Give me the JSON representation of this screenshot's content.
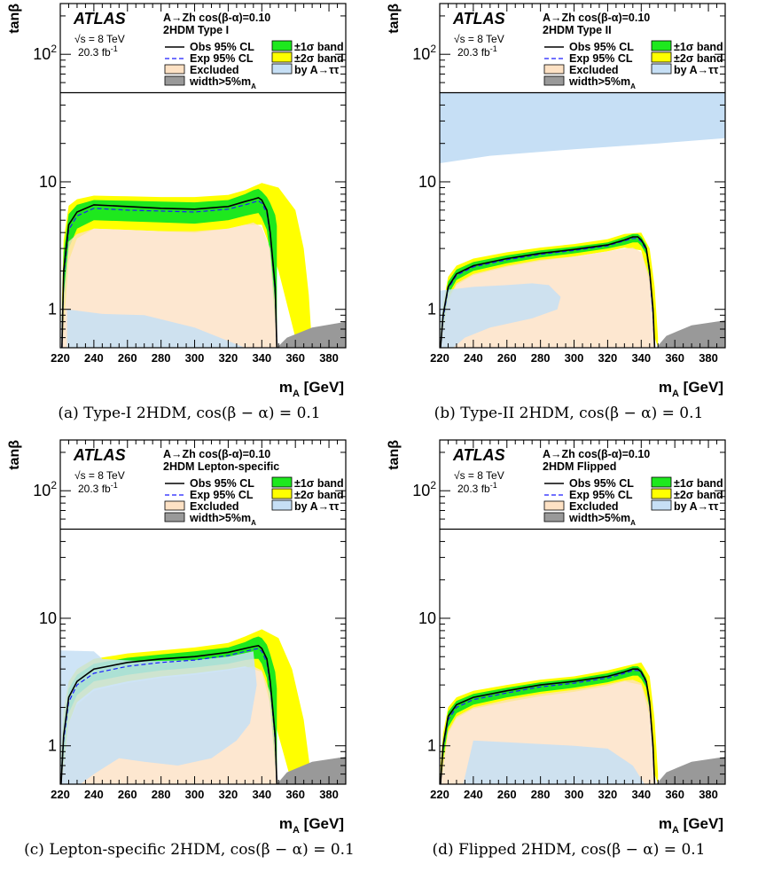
{
  "colors": {
    "excluded": "#fde1c4",
    "band1": "#1ee81e",
    "band2": "#ffff00",
    "atautau": "#c6dff5",
    "width": "#999999",
    "exp": "#1c1cff",
    "obs": "#000000"
  },
  "chart_data": [
    {
      "type": "area",
      "atlas_label": "ATLAS",
      "process_label": "A→Zh cos(β-α)=0.10",
      "model_label": "2HDM Type I",
      "energy_label": "√s = 8 TeV",
      "lumi_label": "20.3 fb",
      "lumi_sup": "-1",
      "xlabel": "m",
      "xlabel_sub": "A",
      "xlabel_unit": " [GeV]",
      "ylabel": "tanβ",
      "xlim": [
        220,
        390
      ],
      "ylim": [
        0.5,
        250
      ],
      "yscale": "log",
      "xticks": [
        220,
        240,
        260,
        280,
        300,
        320,
        340,
        360,
        380
      ],
      "yticks": [
        {
          "label": "1",
          "value": 1
        },
        {
          "label": "10",
          "value": 10
        },
        {
          "label": "10",
          "sup": "2",
          "value": 100
        }
      ],
      "legend": {
        "obs": "Obs 95% CL",
        "exp": "Exp 95% CL",
        "excluded": "Excluded",
        "width": "width>5%m",
        "width_sub": "A",
        "band1": "±1σ band",
        "band2": "±2σ band",
        "atautau": "by A→ττ"
      },
      "caption": "(a) Type-I 2HDM, cos(β − α) = 0.1",
      "upper_line": 50,
      "x": [
        221,
        222,
        225,
        230,
        240,
        260,
        280,
        300,
        320,
        330,
        335,
        338,
        340,
        343,
        345,
        348,
        349
      ],
      "obs": [
        0.5,
        2.0,
        4.6,
        5.8,
        6.6,
        6.4,
        6.2,
        6.1,
        6.4,
        7.0,
        7.3,
        7.5,
        7.2,
        6.0,
        4.0,
        1.5,
        0.5
      ],
      "exp": [
        0.5,
        1.8,
        4.2,
        5.4,
        6.2,
        6.0,
        5.9,
        5.8,
        6.1,
        6.6,
        6.9,
        7.1,
        6.8,
        5.7,
        3.8,
        1.4,
        0.5
      ],
      "band1_upper": [
        0.9,
        2.8,
        5.6,
        6.6,
        7.2,
        7.1,
        7.0,
        6.9,
        7.2,
        8.0,
        8.6,
        8.8,
        8.4,
        7.6,
        6.8,
        5.5,
        4.5
      ],
      "band1_lower": [
        0.5,
        1.0,
        3.0,
        4.3,
        5.0,
        4.9,
        4.8,
        4.7,
        5.0,
        5.4,
        5.6,
        5.7,
        5.2,
        4.2,
        2.6,
        0.8,
        0.5
      ],
      "band2_x": [
        221,
        222,
        225,
        230,
        240,
        260,
        280,
        300,
        320,
        330,
        340,
        350,
        360,
        365,
        368,
        370
      ],
      "band2_upper": [
        1.2,
        3.5,
        6.5,
        7.3,
        7.8,
        7.7,
        7.6,
        7.6,
        7.9,
        8.6,
        9.8,
        9.0,
        6.0,
        3.0,
        1.3,
        0.5
      ],
      "band2_lower": [
        0.5,
        0.7,
        2.4,
        3.6,
        4.3,
        4.2,
        4.1,
        4.0,
        4.3,
        4.6,
        4.6,
        2.0,
        0.6,
        0.5,
        0.5,
        0.5
      ],
      "excluded_x": [
        221,
        222,
        225,
        230,
        240,
        260,
        280,
        300,
        320,
        330,
        335,
        340,
        345,
        348,
        349
      ],
      "excluded_upper": [
        0.5,
        1.3,
        3.4,
        3.9,
        4.3,
        4.2,
        4.1,
        4.1,
        4.3,
        4.6,
        4.8,
        4.4,
        3.0,
        1.1,
        0.5
      ],
      "atautau_poly": [
        [
          224,
          0.5
        ],
        [
          224,
          1.0
        ],
        [
          245,
          0.92
        ],
        [
          270,
          0.9
        ],
        [
          300,
          0.72
        ],
        [
          330,
          0.5
        ]
      ],
      "width_poly": [
        [
          349,
          0.5
        ],
        [
          355,
          0.6
        ],
        [
          370,
          0.72
        ],
        [
          390,
          0.8
        ],
        [
          390,
          0.5
        ]
      ]
    },
    {
      "type": "area",
      "atlas_label": "ATLAS",
      "process_label": "A→Zh cos(β-α)=0.10",
      "model_label": "2HDM Type II",
      "energy_label": "√s = 8 TeV",
      "lumi_label": "20.3 fb",
      "lumi_sup": "-1",
      "xlabel": "m",
      "xlabel_sub": "A",
      "xlabel_unit": " [GeV]",
      "ylabel": "tanβ",
      "xlim": [
        220,
        390
      ],
      "ylim": [
        0.5,
        250
      ],
      "yscale": "log",
      "xticks": [
        220,
        240,
        260,
        280,
        300,
        320,
        340,
        360,
        380
      ],
      "yticks": [
        {
          "label": "1",
          "value": 1
        },
        {
          "label": "10",
          "value": 10
        },
        {
          "label": "10",
          "sup": "2",
          "value": 100
        }
      ],
      "legend": {
        "obs": "Obs 95% CL",
        "exp": "Exp 95% CL",
        "excluded": "Excluded",
        "width": "width>5%m",
        "width_sub": "A",
        "band1": "±1σ band",
        "band2": "±2σ band",
        "atautau": "by A→ττ"
      },
      "caption": "(b) Type-II 2HDM, cos(β − α) = 0.1",
      "upper_line": 50,
      "x": [
        220.5,
        222,
        225,
        230,
        240,
        260,
        280,
        300,
        320,
        330,
        335,
        338,
        340,
        343,
        345,
        347,
        348
      ],
      "obs": [
        0.5,
        0.9,
        1.5,
        1.9,
        2.2,
        2.5,
        2.75,
        2.95,
        3.2,
        3.5,
        3.7,
        3.7,
        3.5,
        3.0,
        2.0,
        1.0,
        0.5
      ],
      "exp": [
        0.5,
        0.85,
        1.45,
        1.85,
        2.15,
        2.45,
        2.7,
        2.9,
        3.15,
        3.45,
        3.6,
        3.6,
        3.4,
        2.9,
        1.9,
        0.9,
        0.5
      ],
      "band1_upper": [
        0.6,
        1.0,
        1.65,
        2.05,
        2.35,
        2.65,
        2.9,
        3.1,
        3.35,
        3.7,
        3.9,
        3.9,
        3.7,
        3.2,
        2.2,
        1.1,
        0.6
      ],
      "band1_lower": [
        0.5,
        0.75,
        1.3,
        1.7,
        2.0,
        2.3,
        2.55,
        2.75,
        3.0,
        3.2,
        3.35,
        3.35,
        3.15,
        2.7,
        1.7,
        0.8,
        0.5
      ],
      "band2_x": [
        220.5,
        222,
        225,
        230,
        240,
        260,
        280,
        300,
        320,
        330,
        340,
        345,
        348,
        350
      ],
      "band2_upper": [
        0.7,
        1.1,
        1.8,
        2.2,
        2.5,
        2.8,
        3.05,
        3.25,
        3.55,
        3.9,
        4.0,
        3.0,
        1.5,
        0.6
      ],
      "band2_lower": [
        0.5,
        0.6,
        1.15,
        1.55,
        1.85,
        2.15,
        2.4,
        2.6,
        2.85,
        3.05,
        2.9,
        1.6,
        0.6,
        0.5
      ],
      "excluded_x": [
        220.5,
        222,
        225,
        230,
        240,
        260,
        280,
        300,
        320,
        330,
        335,
        340,
        345,
        347,
        348
      ],
      "excluded_upper": [
        0.5,
        0.7,
        1.2,
        1.6,
        1.9,
        2.2,
        2.45,
        2.6,
        2.85,
        3.0,
        3.05,
        2.8,
        1.8,
        0.8,
        0.5
      ],
      "atautau_poly": [
        [
          220,
          0.5
        ],
        [
          220,
          1.4
        ],
        [
          240,
          1.5
        ],
        [
          260,
          1.55
        ],
        [
          275,
          1.6
        ],
        [
          285,
          1.55
        ],
        [
          292,
          1.25
        ],
        [
          290,
          1.0
        ],
        [
          275,
          0.85
        ],
        [
          250,
          0.72
        ],
        [
          235,
          0.6
        ],
        [
          228,
          0.5
        ]
      ],
      "atautau_poly2": [
        [
          220,
          50
        ],
        [
          390,
          50
        ],
        [
          390,
          22
        ],
        [
          350,
          20
        ],
        [
          300,
          18
        ],
        [
          250,
          16
        ],
        [
          220,
          14
        ]
      ],
      "width_poly": [
        [
          349,
          0.5
        ],
        [
          355,
          0.62
        ],
        [
          370,
          0.75
        ],
        [
          390,
          0.82
        ],
        [
          390,
          0.5
        ]
      ]
    },
    {
      "type": "area",
      "atlas_label": "ATLAS",
      "process_label": "A→Zh cos(β-α)=0.10",
      "model_label": "2HDM Lepton-specific",
      "energy_label": "√s = 8 TeV",
      "lumi_label": "20.3 fb",
      "lumi_sup": "-1",
      "xlabel": "m",
      "xlabel_sub": "A",
      "xlabel_unit": " [GeV]",
      "ylabel": "tanβ",
      "xlim": [
        220,
        390
      ],
      "ylim": [
        0.5,
        250
      ],
      "yscale": "log",
      "xticks": [
        220,
        240,
        260,
        280,
        300,
        320,
        340,
        360,
        380
      ],
      "yticks": [
        {
          "label": "1",
          "value": 1
        },
        {
          "label": "10",
          "value": 10
        },
        {
          "label": "10",
          "sup": "2",
          "value": 100
        }
      ],
      "legend": {
        "obs": "Obs 95% CL",
        "exp": "Exp 95% CL",
        "excluded": "Excluded",
        "width": "width>5%m",
        "width_sub": "A",
        "band1": "±1σ band",
        "band2": "±2σ band",
        "atautau": "by A→ττ"
      },
      "caption": "(c) Lepton-specific 2HDM, cos(β − α) = 0.1",
      "upper_line": 50,
      "x": [
        220.5,
        222,
        225,
        230,
        240,
        260,
        280,
        300,
        320,
        330,
        335,
        338,
        340,
        343,
        345,
        348,
        349
      ],
      "obs": [
        0.5,
        1.2,
        2.4,
        3.2,
        4.0,
        4.5,
        4.8,
        5.0,
        5.4,
        5.8,
        6.0,
        6.1,
        5.8,
        4.8,
        3.2,
        1.2,
        0.5
      ],
      "exp": [
        0.5,
        1.1,
        2.2,
        3.0,
        3.7,
        4.2,
        4.5,
        4.7,
        5.1,
        5.5,
        5.7,
        5.8,
        5.5,
        4.5,
        3.0,
        1.1,
        0.5
      ],
      "band1_upper": [
        0.7,
        1.5,
        2.8,
        3.6,
        4.4,
        4.9,
        5.2,
        5.5,
        5.9,
        6.5,
        7.0,
        7.2,
        7.0,
        6.2,
        5.2,
        3.8,
        2.8
      ],
      "band1_lower": [
        0.5,
        0.8,
        1.8,
        2.5,
        3.2,
        3.6,
        3.9,
        4.1,
        4.4,
        4.7,
        4.8,
        4.8,
        4.4,
        3.4,
        2.0,
        0.7,
        0.5
      ],
      "band2_x": [
        220.5,
        222,
        225,
        230,
        240,
        260,
        280,
        300,
        320,
        330,
        340,
        350,
        358,
        365,
        370
      ],
      "band2_upper": [
        0.9,
        1.9,
        3.2,
        4.0,
        4.8,
        5.3,
        5.6,
        5.9,
        6.4,
        7.2,
        8.2,
        7.0,
        4.0,
        1.6,
        0.5
      ],
      "band2_lower": [
        0.5,
        0.6,
        1.5,
        2.2,
        2.8,
        3.2,
        3.5,
        3.7,
        4.0,
        4.2,
        3.8,
        1.2,
        0.5,
        0.5,
        0.5
      ],
      "excluded_x": [
        220.5,
        222,
        225,
        230,
        240,
        260,
        280,
        300,
        320,
        330,
        335,
        340,
        345,
        348,
        349
      ],
      "excluded_upper": [
        0.5,
        0.7,
        1.5,
        2.1,
        2.7,
        3.1,
        3.4,
        3.6,
        3.9,
        4.1,
        4.2,
        3.9,
        2.6,
        1.0,
        0.5
      ],
      "atautau_poly": [
        [
          220,
          0.5
        ],
        [
          220,
          5.6
        ],
        [
          240,
          5.5
        ],
        [
          245,
          4.8
        ],
        [
          270,
          4.6
        ],
        [
          300,
          4.7
        ],
        [
          320,
          5.0
        ],
        [
          335,
          5.5
        ],
        [
          337,
          3.0
        ],
        [
          333,
          1.5
        ],
        [
          325,
          1.1
        ],
        [
          310,
          0.8
        ],
        [
          290,
          0.7
        ],
        [
          270,
          0.75
        ],
        [
          255,
          0.8
        ],
        [
          240,
          0.6
        ],
        [
          232,
          0.5
        ]
      ],
      "width_poly": [
        [
          349,
          0.5
        ],
        [
          355,
          0.62
        ],
        [
          370,
          0.75
        ],
        [
          390,
          0.82
        ],
        [
          390,
          0.5
        ]
      ]
    },
    {
      "type": "area",
      "atlas_label": "ATLAS",
      "process_label": "A→Zh cos(β-α)=0.10",
      "model_label": "2HDM Flipped",
      "energy_label": "√s = 8 TeV",
      "lumi_label": "20.3 fb",
      "lumi_sup": "-1",
      "xlabel": "m",
      "xlabel_sub": "A",
      "xlabel_unit": " [GeV]",
      "ylabel": "tanβ",
      "xlim": [
        220,
        390
      ],
      "ylim": [
        0.5,
        250
      ],
      "yscale": "log",
      "xticks": [
        220,
        240,
        260,
        280,
        300,
        320,
        340,
        360,
        380
      ],
      "yticks": [
        {
          "label": "1",
          "value": 1
        },
        {
          "label": "10",
          "value": 10
        },
        {
          "label": "10",
          "sup": "2",
          "value": 100
        }
      ],
      "legend": {
        "obs": "Obs 95% CL",
        "exp": "Exp 95% CL",
        "excluded": "Excluded",
        "width": "width>5%m",
        "width_sub": "A",
        "band1": "±1σ band",
        "band2": "±2σ band",
        "atautau": "by A→ττ"
      },
      "caption": "(d) Flipped 2HDM, cos(β − α) = 0.1",
      "upper_line": 50,
      "x": [
        220.5,
        222,
        225,
        230,
        240,
        260,
        280,
        300,
        320,
        330,
        335,
        338,
        340,
        343,
        345,
        347,
        348
      ],
      "obs": [
        0.5,
        1.0,
        1.7,
        2.1,
        2.4,
        2.7,
        3.0,
        3.2,
        3.5,
        3.8,
        4.0,
        4.0,
        3.8,
        3.2,
        2.2,
        1.0,
        0.5
      ],
      "exp": [
        0.5,
        0.95,
        1.6,
        2.0,
        2.3,
        2.6,
        2.9,
        3.1,
        3.4,
        3.7,
        3.9,
        3.9,
        3.7,
        3.1,
        2.1,
        0.95,
        0.5
      ],
      "band1_upper": [
        0.6,
        1.1,
        1.85,
        2.25,
        2.55,
        2.85,
        3.15,
        3.35,
        3.7,
        4.0,
        4.2,
        4.2,
        4.0,
        3.4,
        2.4,
        1.1,
        0.6
      ],
      "band1_lower": [
        0.5,
        0.8,
        1.4,
        1.8,
        2.1,
        2.4,
        2.65,
        2.85,
        3.15,
        3.4,
        3.55,
        3.55,
        3.35,
        2.85,
        1.85,
        0.8,
        0.5
      ],
      "band2_x": [
        220.5,
        222,
        225,
        230,
        240,
        260,
        280,
        300,
        320,
        330,
        340,
        345,
        348,
        350
      ],
      "band2_upper": [
        0.7,
        1.25,
        2.0,
        2.4,
        2.7,
        3.0,
        3.3,
        3.5,
        3.9,
        4.2,
        4.5,
        3.5,
        1.6,
        0.6
      ],
      "band2_lower": [
        0.5,
        0.65,
        1.25,
        1.65,
        1.95,
        2.2,
        2.45,
        2.65,
        2.95,
        3.2,
        3.0,
        1.7,
        0.6,
        0.5
      ],
      "excluded_x": [
        220.5,
        222,
        225,
        230,
        240,
        260,
        280,
        300,
        320,
        330,
        335,
        340,
        345,
        347,
        348
      ],
      "excluded_upper": [
        0.5,
        0.75,
        1.3,
        1.7,
        2.0,
        2.3,
        2.55,
        2.75,
        3.05,
        3.25,
        3.3,
        3.1,
        2.0,
        0.85,
        0.5
      ],
      "atautau_poly": [
        [
          234,
          0.5
        ],
        [
          240,
          1.1
        ],
        [
          270,
          1.05
        ],
        [
          300,
          1.0
        ],
        [
          320,
          0.95
        ],
        [
          335,
          0.7
        ],
        [
          342,
          0.5
        ]
      ],
      "width_poly": [
        [
          349,
          0.5
        ],
        [
          355,
          0.62
        ],
        [
          370,
          0.75
        ],
        [
          390,
          0.82
        ],
        [
          390,
          0.5
        ]
      ]
    }
  ]
}
